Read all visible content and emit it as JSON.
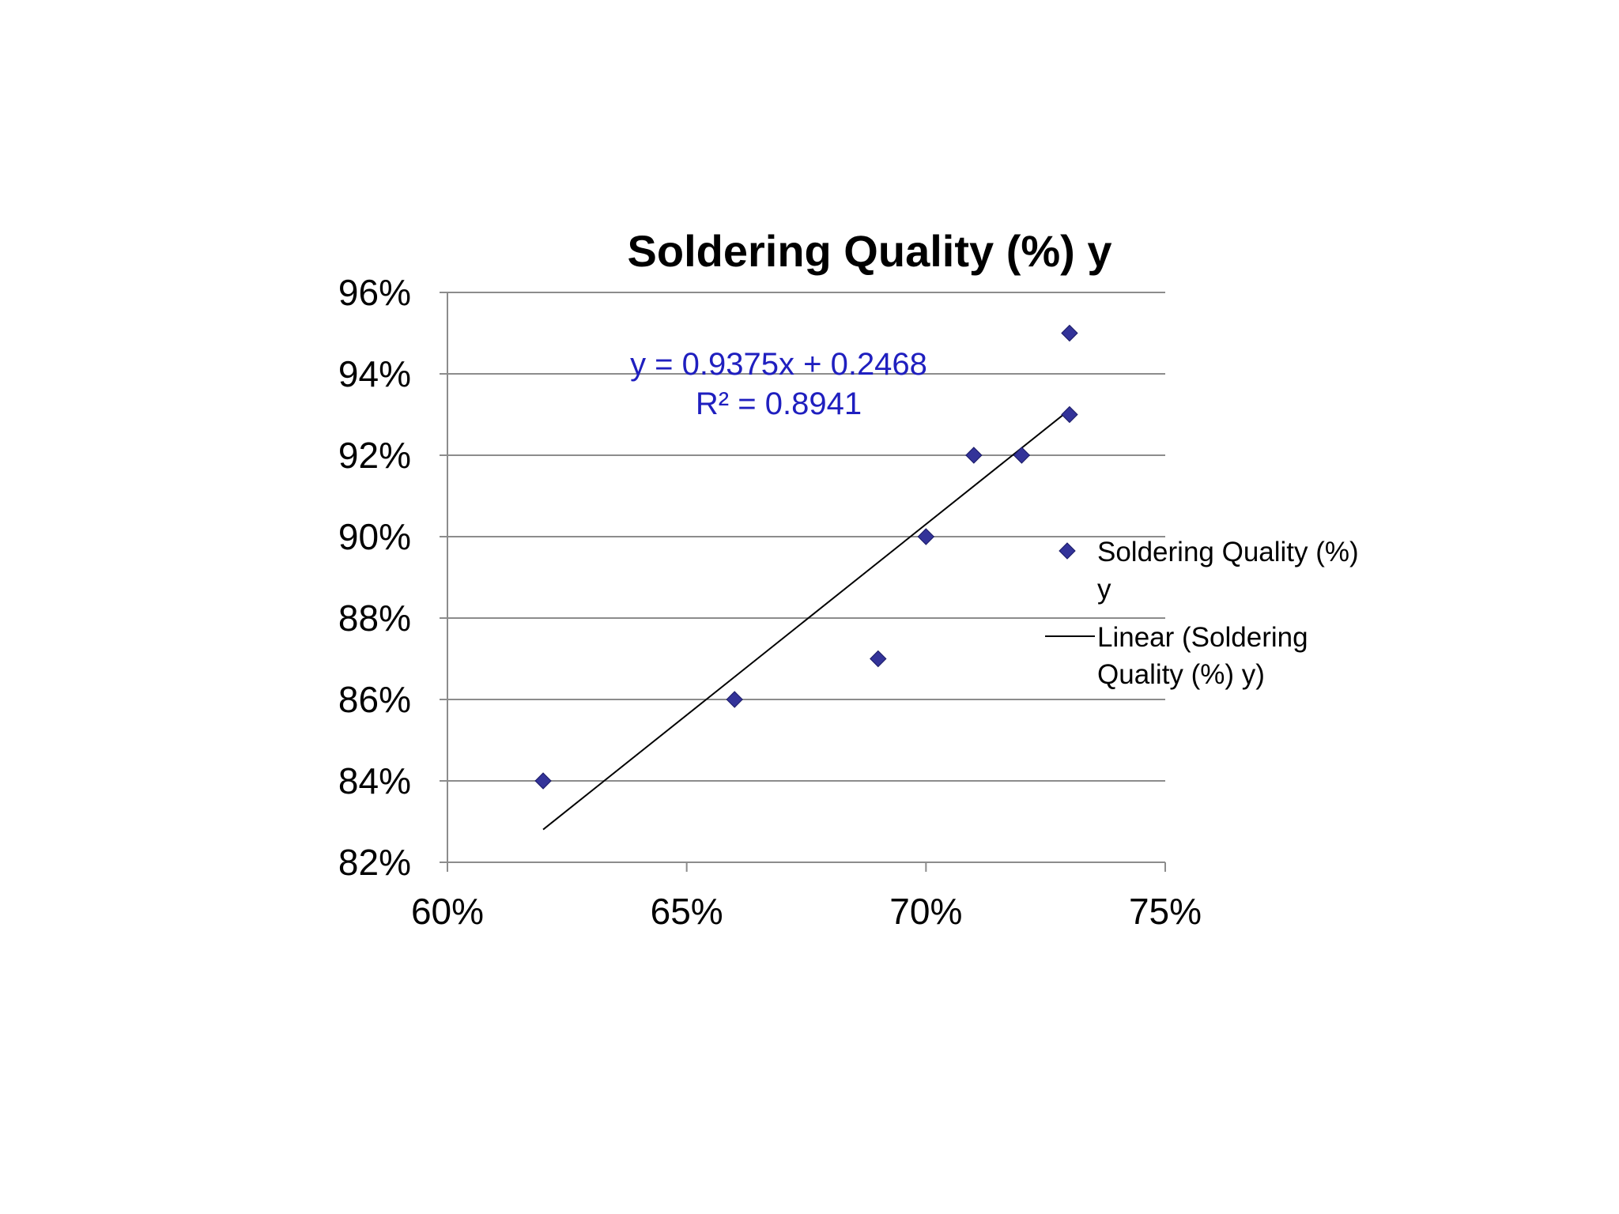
{
  "chart_data": {
    "type": "scatter",
    "title": "Soldering Quality (%) y",
    "xlabel": "",
    "ylabel": "",
    "xlim": [
      0.6,
      0.75
    ],
    "ylim": [
      0.82,
      0.96
    ],
    "x_ticks": [
      "60%",
      "65%",
      "70%",
      "75%"
    ],
    "y_ticks": [
      "82%",
      "84%",
      "86%",
      "88%",
      "90%",
      "92%",
      "94%",
      "96%"
    ],
    "grid": "horizontal",
    "legend": "right",
    "series": [
      {
        "name": "Soldering Quality (%) y",
        "marker": "diamond",
        "color": "#333399",
        "points": [
          {
            "x": 0.62,
            "y": 0.84
          },
          {
            "x": 0.66,
            "y": 0.86
          },
          {
            "x": 0.69,
            "y": 0.87
          },
          {
            "x": 0.7,
            "y": 0.9
          },
          {
            "x": 0.71,
            "y": 0.92
          },
          {
            "x": 0.72,
            "y": 0.92
          },
          {
            "x": 0.73,
            "y": 0.93
          },
          {
            "x": 0.73,
            "y": 0.95
          }
        ]
      }
    ],
    "trendline": {
      "name_lines": [
        "Linear (Soldering",
        "Quality (%) y)"
      ],
      "slope": 0.9375,
      "intercept": 0.2468,
      "x_range": [
        0.62,
        0.73
      ],
      "color": "#000000",
      "equation": "y = 0.9375x + 0.2468",
      "r_squared": "R² = 0.8941",
      "equation_color": "#1f1fbf"
    },
    "legend_entries": [
      {
        "lines": [
          "Soldering Quality (%)",
          "y"
        ],
        "symbol": "diamond"
      },
      {
        "lines": [
          "Linear (Soldering",
          "Quality (%) y)"
        ],
        "symbol": "line"
      }
    ]
  }
}
